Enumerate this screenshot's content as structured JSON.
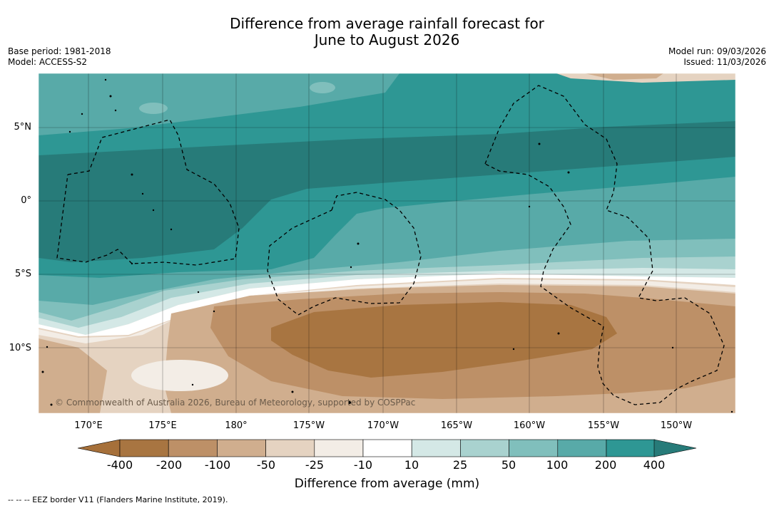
{
  "title": {
    "line1": "Difference from average rainfall forecast for",
    "line2": "June to August 2026"
  },
  "meta": {
    "base_period": "Base period: 1981-2018",
    "model": "Model: ACCESS-S2",
    "model_run": "Model run: 09/03/2026",
    "issued": "Issued: 11/03/2026"
  },
  "map": {
    "lat_labels": [
      "5°N",
      "0°",
      "5°S",
      "10°S"
    ],
    "lon_labels": [
      "170°E",
      "175°E",
      "180°",
      "175°W",
      "170°W",
      "165°W",
      "160°W",
      "155°W",
      "150°W"
    ],
    "lat_range": [
      -14.5,
      8.5
    ],
    "lon_range": [
      166.5,
      213.5
    ],
    "copyright": "© Commonwealth of Australia 2026, Bureau of Meteorology, supported by COSPPac"
  },
  "colorbar": {
    "labels": [
      "-400",
      "-200",
      "-100",
      "-50",
      "-25",
      "-10",
      "10",
      "25",
      "50",
      "100",
      "200",
      "400"
    ],
    "colors": [
      "#a6703a",
      "#a87541",
      "#bd9067",
      "#d0ae8e",
      "#e5d3c1",
      "#f3ede6",
      "#ffffff",
      "#d4e8e6",
      "#a9d2cf",
      "#80bfbc",
      "#58aaa8",
      "#2e9794",
      "#277b79"
    ],
    "title": "Difference from average (mm)"
  },
  "footer": "--  --  -- EEZ border V11 (Flanders Marine Institute, 2019).",
  "palette": {
    "teal_dark": "#277b79",
    "teal": "#2e9794",
    "teal_mid": "#58aaa8",
    "teal_light": "#80bfbc",
    "teal_pale": "#a9d2cf",
    "teal_faint": "#d4e8e6",
    "brown_pale": "#f3ede6",
    "brown_light": "#e5d3c1",
    "brown_mid": "#d0ae8e",
    "brown": "#bd9067",
    "brown_dark": "#a87541"
  }
}
